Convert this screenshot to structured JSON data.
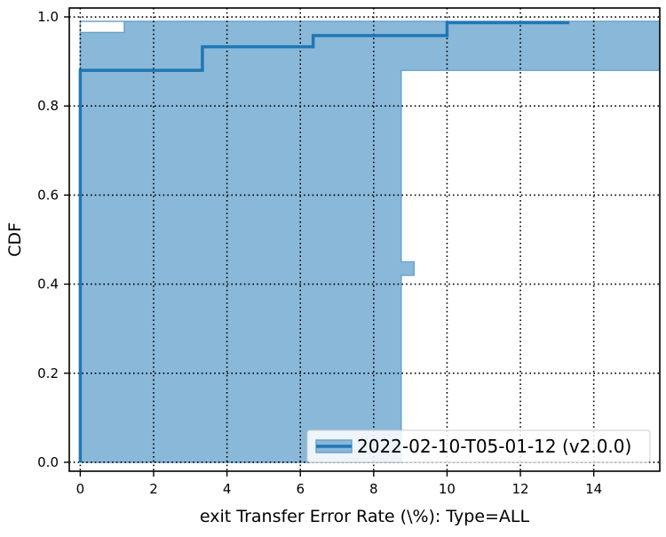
{
  "chart_data": {
    "type": "line",
    "title": "",
    "xlabel": "exit Transfer Error Rate (\\%): Type=ALL",
    "ylabel": "CDF",
    "xlim": [
      -0.3,
      15.8
    ],
    "ylim": [
      -0.02,
      1.02
    ],
    "xticks": [
      0,
      2,
      4,
      6,
      8,
      10,
      12,
      14
    ],
    "yticks": [
      0.0,
      0.2,
      0.4,
      0.6,
      0.8,
      1.0
    ],
    "grid": true,
    "legend_position": "lower-right",
    "colors": {
      "line": "#1f77b4",
      "band_fill": "#8ab8d9",
      "band_edge": "#6aa3cc",
      "grid": "#000000"
    },
    "series": [
      {
        "name": "2022-02-10-T05-01-12 (v2.0.0)",
        "type": "step",
        "points": [
          [
            0.0,
            0.0
          ],
          [
            0.0,
            0.88
          ],
          [
            3.33,
            0.88
          ],
          [
            3.33,
            0.933
          ],
          [
            6.35,
            0.933
          ],
          [
            6.35,
            0.958
          ],
          [
            10.0,
            0.958
          ],
          [
            10.0,
            0.987
          ],
          [
            13.33,
            0.987
          ]
        ],
        "band": {
          "description": "confidence band around the CDF",
          "upper": [
            [
              0.0,
              0.99
            ],
            [
              1.2,
              0.99
            ],
            [
              1.2,
              0.99
            ],
            [
              15.8,
              0.99
            ]
          ],
          "lower": [
            [
              0.0,
              0.0
            ],
            [
              8.75,
              0.0
            ],
            [
              8.75,
              0.42
            ],
            [
              9.1,
              0.42
            ],
            [
              9.1,
              0.45
            ],
            [
              8.75,
              0.45
            ],
            [
              8.75,
              0.88
            ],
            [
              15.8,
              0.88
            ]
          ],
          "notch": {
            "x_from": 0.0,
            "x_to": 1.2,
            "y_from": 0.965,
            "y_to": 0.99
          }
        }
      }
    ]
  }
}
